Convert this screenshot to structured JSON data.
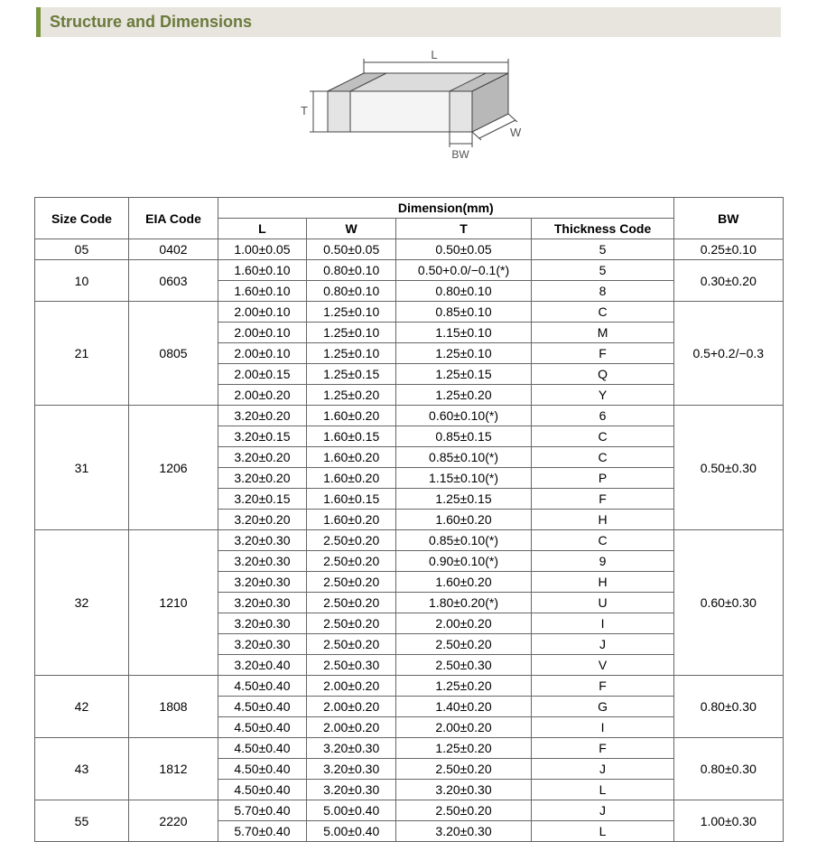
{
  "title": "Structure and Dimensions",
  "diagram": {
    "labels": {
      "L": "L",
      "W": "W",
      "T": "T",
      "BW": "BW"
    },
    "stroke": "#444444",
    "fill_top": "#dcdcdc",
    "fill_front": "#f4f4f4",
    "fill_side": "#cfcfcf",
    "band_top": "#c0c0c0",
    "band_front": "#e4e4e4",
    "band_side": "#b8b8b8",
    "text_color": "#555555"
  },
  "table": {
    "headers": {
      "size_code": "Size Code",
      "eia_code": "EIA Code",
      "dimension": "Dimension(mm)",
      "L": "L",
      "W": "W",
      "T": "T",
      "thickness_code": "Thickness  Code",
      "BW": "BW"
    },
    "groups": [
      {
        "size_code": "05",
        "eia_code": "0402",
        "bw": "0.25±0.10",
        "rows": [
          {
            "L": "1.00±0.05",
            "W": "0.50±0.05",
            "T": "0.50±0.05",
            "tc": "5"
          }
        ]
      },
      {
        "size_code": "10",
        "eia_code": "0603",
        "bw": "0.30±0.20",
        "rows": [
          {
            "L": "1.60±0.10",
            "W": "0.80±0.10",
            "T": "0.50+0.0/−0.1(*)",
            "tc": "5"
          },
          {
            "L": "1.60±0.10",
            "W": "0.80±0.10",
            "T": "0.80±0.10",
            "tc": "8"
          }
        ]
      },
      {
        "size_code": "21",
        "eia_code": "0805",
        "bw": "0.5+0.2/−0.3",
        "rows": [
          {
            "L": "2.00±0.10",
            "W": "1.25±0.10",
            "T": "0.85±0.10",
            "tc": "C"
          },
          {
            "L": "2.00±0.10",
            "W": "1.25±0.10",
            "T": "1.15±0.10",
            "tc": "M"
          },
          {
            "L": "2.00±0.10",
            "W": "1.25±0.10",
            "T": "1.25±0.10",
            "tc": "F"
          },
          {
            "L": "2.00±0.15",
            "W": "1.25±0.15",
            "T": "1.25±0.15",
            "tc": "Q"
          },
          {
            "L": "2.00±0.20",
            "W": "1.25±0.20",
            "T": "1.25±0.20",
            "tc": "Y"
          }
        ]
      },
      {
        "size_code": "31",
        "eia_code": "1206",
        "bw": "0.50±0.30",
        "rows": [
          {
            "L": "3.20±0.20",
            "W": "1.60±0.20",
            "T": "0.60±0.10(*)",
            "tc": "6"
          },
          {
            "L": "3.20±0.15",
            "W": "1.60±0.15",
            "T": "0.85±0.15",
            "tc": "C"
          },
          {
            "L": "3.20±0.20",
            "W": "1.60±0.20",
            "T": "0.85±0.10(*)",
            "tc": "C"
          },
          {
            "L": "3.20±0.20",
            "W": "1.60±0.20",
            "T": "1.15±0.10(*)",
            "tc": "P"
          },
          {
            "L": "3.20±0.15",
            "W": "1.60±0.15",
            "T": "1.25±0.15",
            "tc": "F"
          },
          {
            "L": "3.20±0.20",
            "W": "1.60±0.20",
            "T": "1.60±0.20",
            "tc": "H"
          }
        ]
      },
      {
        "size_code": "32",
        "eia_code": "1210",
        "bw": "0.60±0.30",
        "rows": [
          {
            "L": "3.20±0.30",
            "W": "2.50±0.20",
            "T": "0.85±0.10(*)",
            "tc": "C"
          },
          {
            "L": "3.20±0.30",
            "W": "2.50±0.20",
            "T": "0.90±0.10(*)",
            "tc": "9"
          },
          {
            "L": "3.20±0.30",
            "W": "2.50±0.20",
            "T": "1.60±0.20",
            "tc": "H"
          },
          {
            "L": "3.20±0.30",
            "W": "2.50±0.20",
            "T": "1.80±0.20(*)",
            "tc": "U"
          },
          {
            "L": "3.20±0.30",
            "W": "2.50±0.20",
            "T": "2.00±0.20",
            "tc": "I"
          },
          {
            "L": "3.20±0.30",
            "W": "2.50±0.20",
            "T": "2.50±0.20",
            "tc": "J"
          },
          {
            "L": "3.20±0.40",
            "W": "2.50±0.30",
            "T": "2.50±0.30",
            "tc": "V"
          }
        ]
      },
      {
        "size_code": "42",
        "eia_code": "1808",
        "bw": "0.80±0.30",
        "rows": [
          {
            "L": "4.50±0.40",
            "W": "2.00±0.20",
            "T": "1.25±0.20",
            "tc": "F"
          },
          {
            "L": "4.50±0.40",
            "W": "2.00±0.20",
            "T": "1.40±0.20",
            "tc": "G"
          },
          {
            "L": "4.50±0.40",
            "W": "2.00±0.20",
            "T": "2.00±0.20",
            "tc": "I"
          }
        ]
      },
      {
        "size_code": "43",
        "eia_code": "1812",
        "bw": "0.80±0.30",
        "rows": [
          {
            "L": "4.50±0.40",
            "W": "3.20±0.30",
            "T": "1.25±0.20",
            "tc": "F"
          },
          {
            "L": "4.50±0.40",
            "W": "3.20±0.30",
            "T": "2.50±0.20",
            "tc": "J"
          },
          {
            "L": "4.50±0.40",
            "W": "3.20±0.30",
            "T": "3.20±0.30",
            "tc": "L"
          }
        ]
      },
      {
        "size_code": "55",
        "eia_code": "2220",
        "bw": "1.00±0.30",
        "rows": [
          {
            "L": "5.70±0.40",
            "W": "5.00±0.40",
            "T": "2.50±0.20",
            "tc": "J"
          },
          {
            "L": "5.70±0.40",
            "W": "5.00±0.40",
            "T": "3.20±0.30",
            "tc": "L"
          }
        ]
      }
    ]
  },
  "style": {
    "title_bg": "#e8e5de",
    "title_accent": "#7a9540",
    "title_color": "#6a7a3c",
    "border_color": "#666666",
    "font_size_table": 14,
    "font_size_title": 18
  }
}
